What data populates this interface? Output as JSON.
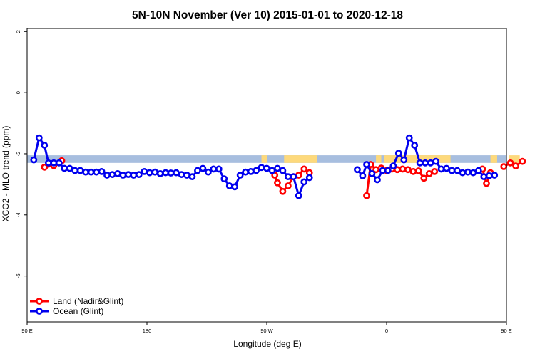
{
  "chart_data": {
    "type": "line",
    "title": "5N-10N November (Ver 10)   2015-01-01 to 2020-12-18",
    "xlabel": "Longitude (deg E)",
    "ylabel": "XCO2 - MLO trend (ppm)",
    "xlim": [
      90,
      450
    ],
    "ylim": [
      -7.5,
      2.1
    ],
    "x_ticks": [
      {
        "value": 90,
        "label": "90 E"
      },
      {
        "value": 180,
        "label": "180"
      },
      {
        "value": 270,
        "label": "90 W"
      },
      {
        "value": 360,
        "label": "0"
      },
      {
        "value": 450,
        "label": "90 E"
      },
      {
        "value": 540,
        "label": "180"
      }
    ],
    "y_ticks": [
      -6,
      -4,
      -2,
      0,
      2
    ],
    "y_tick_labels": [
      "-6",
      "-4",
      "-2",
      "0",
      "2"
    ],
    "grid": false,
    "legend_position": "bottom-left",
    "surface_band": {
      "y_top": -2.05,
      "y_bottom": -2.3,
      "ocean_color": "#a7bedf",
      "land_color": "#fdd97c",
      "land_ranges": [
        [
          266,
          270
        ],
        [
          283,
          308
        ],
        [
          352,
          356
        ],
        [
          358,
          408
        ],
        [
          438,
          443
        ],
        [
          452,
          460
        ]
      ]
    },
    "series": [
      {
        "name": "Land (Nadir&Glint)",
        "color": "#ff0000",
        "segments": [
          [
            [
              103,
              -2.44
            ],
            [
              110,
              -2.39
            ],
            [
              116,
              -2.23
            ]
          ],
          [
            [
              276,
              -2.7
            ],
            [
              278,
              -2.95
            ],
            [
              282,
              -3.23
            ],
            [
              286,
              -3.05
            ],
            [
              290,
              -2.75
            ],
            [
              294,
              -2.7
            ],
            [
              298,
              -2.5
            ],
            [
              302,
              -2.62
            ]
          ],
          [
            [
              345,
              -3.37
            ],
            [
              348,
              -2.35
            ],
            [
              352,
              -2.52
            ],
            [
              356,
              -2.47
            ],
            [
              360,
              -2.55
            ],
            [
              364,
              -2.5
            ],
            [
              368,
              -2.52
            ],
            [
              372,
              -2.5
            ],
            [
              376,
              -2.52
            ],
            [
              380,
              -2.58
            ],
            [
              384,
              -2.56
            ],
            [
              388,
              -2.8
            ],
            [
              392,
              -2.65
            ],
            [
              396,
              -2.58
            ]
          ],
          [
            [
              432,
              -2.5
            ],
            [
              435,
              -2.97
            ],
            [
              438,
              -2.62
            ]
          ],
          [
            [
              448,
              -2.42
            ],
            [
              453,
              -2.3
            ],
            [
              457,
              -2.4
            ],
            [
              462,
              -2.25
            ]
          ]
        ]
      },
      {
        "name": "Ocean (Glint)",
        "color": "#0000ee",
        "segments": [
          [
            [
              95,
              -2.2
            ],
            [
              99,
              -1.48
            ],
            [
              103,
              -1.72
            ],
            [
              106,
              -2.3
            ],
            [
              110,
              -2.3
            ],
            [
              114,
              -2.3
            ],
            [
              118,
              -2.48
            ],
            [
              122,
              -2.48
            ],
            [
              126,
              -2.55
            ],
            [
              130,
              -2.55
            ],
            [
              134,
              -2.6
            ],
            [
              138,
              -2.6
            ],
            [
              142,
              -2.6
            ],
            [
              146,
              -2.58
            ],
            [
              150,
              -2.7
            ],
            [
              154,
              -2.68
            ],
            [
              158,
              -2.65
            ],
            [
              162,
              -2.7
            ],
            [
              166,
              -2.68
            ],
            [
              170,
              -2.7
            ],
            [
              174,
              -2.68
            ],
            [
              178,
              -2.58
            ],
            [
              182,
              -2.62
            ],
            [
              186,
              -2.6
            ],
            [
              190,
              -2.65
            ],
            [
              194,
              -2.62
            ],
            [
              198,
              -2.63
            ],
            [
              202,
              -2.62
            ],
            [
              206,
              -2.68
            ],
            [
              210,
              -2.7
            ],
            [
              214,
              -2.75
            ],
            [
              218,
              -2.55
            ],
            [
              222,
              -2.48
            ],
            [
              226,
              -2.6
            ],
            [
              230,
              -2.5
            ],
            [
              234,
              -2.5
            ],
            [
              238,
              -2.82
            ],
            [
              242,
              -3.05
            ],
            [
              246,
              -3.08
            ],
            [
              250,
              -2.7
            ],
            [
              254,
              -2.6
            ],
            [
              258,
              -2.58
            ],
            [
              262,
              -2.55
            ],
            [
              266,
              -2.45
            ],
            [
              270,
              -2.48
            ],
            [
              274,
              -2.55
            ],
            [
              278,
              -2.48
            ],
            [
              282,
              -2.55
            ],
            [
              286,
              -2.75
            ],
            [
              290,
              -2.75
            ],
            [
              294,
              -3.37
            ],
            [
              298,
              -2.92
            ],
            [
              302,
              -2.78
            ]
          ],
          [
            [
              338,
              -2.52
            ],
            [
              342,
              -2.72
            ],
            [
              345,
              -2.35
            ],
            [
              349,
              -2.65
            ],
            [
              353,
              -2.85
            ],
            [
              357,
              -2.55
            ],
            [
              361,
              -2.55
            ],
            [
              365,
              -2.4
            ],
            [
              369,
              -1.98
            ],
            [
              373,
              -2.2
            ],
            [
              377,
              -1.48
            ],
            [
              381,
              -1.72
            ],
            [
              385,
              -2.3
            ],
            [
              389,
              -2.3
            ],
            [
              393,
              -2.3
            ],
            [
              397,
              -2.25
            ],
            [
              401,
              -2.5
            ],
            [
              405,
              -2.48
            ],
            [
              409,
              -2.55
            ],
            [
              413,
              -2.55
            ],
            [
              417,
              -2.62
            ],
            [
              421,
              -2.6
            ],
            [
              425,
              -2.62
            ],
            [
              429,
              -2.55
            ],
            [
              433,
              -2.75
            ],
            [
              437,
              -2.72
            ],
            [
              441,
              -2.7
            ]
          ]
        ]
      }
    ]
  }
}
